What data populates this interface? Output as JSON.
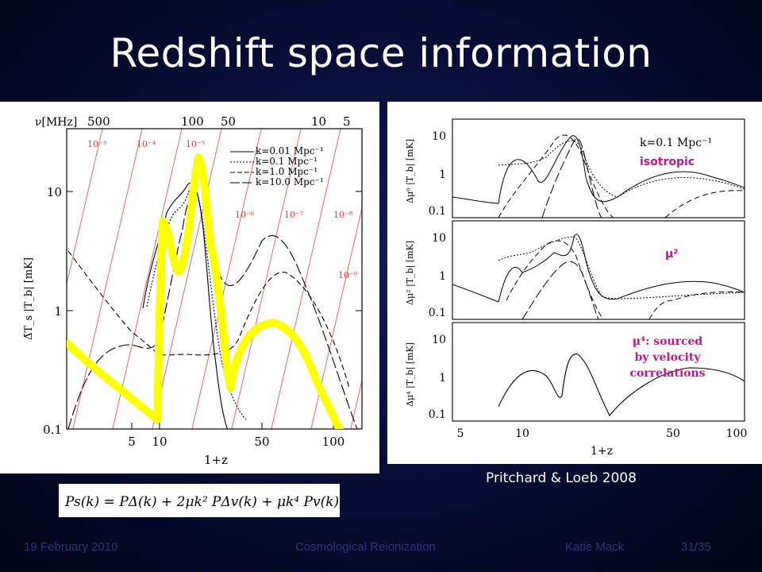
{
  "slide": {
    "title": "Redshift space information",
    "citation": "Pritchard & Loeb 2008"
  },
  "footer": {
    "date": "19 February 2010",
    "talk_title": "Cosmological Reionization",
    "author": "Katie Mack",
    "page": "31/35"
  },
  "left_figure": {
    "top_axis_label": "ν[MHz]",
    "top_ticks": [
      "500",
      "100",
      "50",
      "10",
      "5"
    ],
    "x_label": "1+z",
    "x_ticks": [
      "5",
      "10",
      "50",
      "100"
    ],
    "y_ticks": [
      "0.1",
      "1",
      "10"
    ],
    "y_label": "Δ̄T_s |T_b| [mK]",
    "line_labels": [
      "10⁻³",
      "10⁻⁴",
      "10⁻⁵",
      "10⁻⁶",
      "10⁻⁷",
      "10⁻⁸",
      "10⁻⁹"
    ],
    "legend": [
      "k=0.01 Mpc⁻¹",
      "k=0.1 Mpc⁻¹",
      "k=1.0 Mpc⁻¹",
      "k=10.0 Mpc⁻¹"
    ],
    "highlight_color": "#ffff00"
  },
  "right_figure": {
    "x_label": "1+z",
    "x_ticks": [
      "5",
      "10",
      "50",
      "100"
    ],
    "y_ticks": [
      "10",
      "1",
      "0.1"
    ],
    "panel_label": "k=0.1 Mpc⁻¹",
    "panels": [
      {
        "y_label": "Δμ⁰ |T_b| [mK]",
        "annotation": "isotropic"
      },
      {
        "y_label": "Δμ² |T_b| [mK]",
        "annotation": "μ²"
      },
      {
        "y_label": "Δμ⁴ |T_b| [mK]",
        "annotation_lines": [
          "μ⁴: sourced",
          "by velocity",
          "correlations"
        ]
      }
    ],
    "annotation_color": "#c0139a"
  },
  "equation": "Ps(k) = PΔ(k) + 2μk² PΔv(k) + μk⁴ Pv(k)"
}
